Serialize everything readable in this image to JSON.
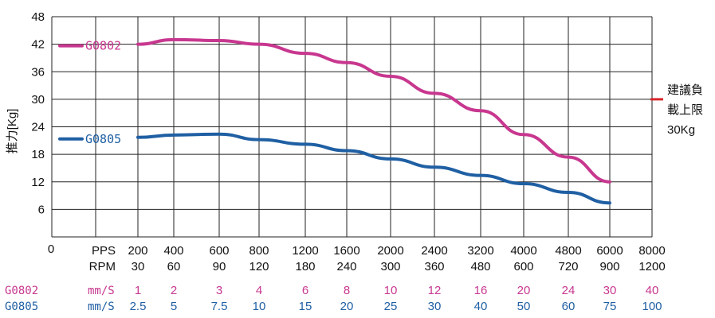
{
  "chart_data": {
    "type": "line",
    "ylabel": "推力[Kg]",
    "ylim": [
      0,
      48
    ],
    "yticks": [
      6,
      12,
      18,
      24,
      30,
      36,
      42,
      48
    ],
    "y_origin_label": "0",
    "grid": true,
    "x_axis_rows": [
      {
        "label": "PPS",
        "values": [
          "200",
          "400",
          "600",
          "800",
          "1200",
          "1600",
          "2000",
          "2400",
          "3200",
          "4000",
          "4800",
          "6000",
          "8000"
        ]
      },
      {
        "label": "RPM",
        "values": [
          "30",
          "60",
          "90",
          "120",
          "180",
          "240",
          "300",
          "360",
          "480",
          "600",
          "720",
          "900",
          "1200"
        ]
      }
    ],
    "speed_rows": [
      {
        "series": "G0802",
        "unit": "mm/S",
        "values": [
          "1",
          "2",
          "3",
          "4",
          "6",
          "8",
          "10",
          "12",
          "16",
          "20",
          "24",
          "30",
          "40"
        ]
      },
      {
        "series": "G0805",
        "unit": "mm/S",
        "values": [
          "2.5",
          "5",
          "7.5",
          "10",
          "15",
          "20",
          "25",
          "30",
          "40",
          "50",
          "60",
          "75",
          "100"
        ]
      }
    ],
    "series": [
      {
        "name": "G0802",
        "color": "#c8378f",
        "x": [
          "200",
          "400",
          "600",
          "800",
          "1200",
          "1600",
          "2000",
          "2400",
          "3200",
          "4000",
          "4800",
          "6000"
        ],
        "values": [
          42,
          43,
          42.8,
          42,
          40,
          38,
          35,
          31.3,
          27.5,
          22.3,
          17.4,
          12
        ]
      },
      {
        "name": "G0805",
        "color": "#1f5fa3",
        "x": [
          "200",
          "400",
          "600",
          "800",
          "1200",
          "1600",
          "2000",
          "2400",
          "3200",
          "4000",
          "4800",
          "6000"
        ],
        "values": [
          21.7,
          22.2,
          22.4,
          21.2,
          20.2,
          18.8,
          17,
          15.2,
          13.4,
          11.6,
          9.7,
          7.4
        ]
      }
    ],
    "annotation": {
      "lines": [
        "建議負",
        "載上限",
        "30Kg"
      ],
      "value": 30,
      "marker_color": "#d9262b"
    }
  }
}
